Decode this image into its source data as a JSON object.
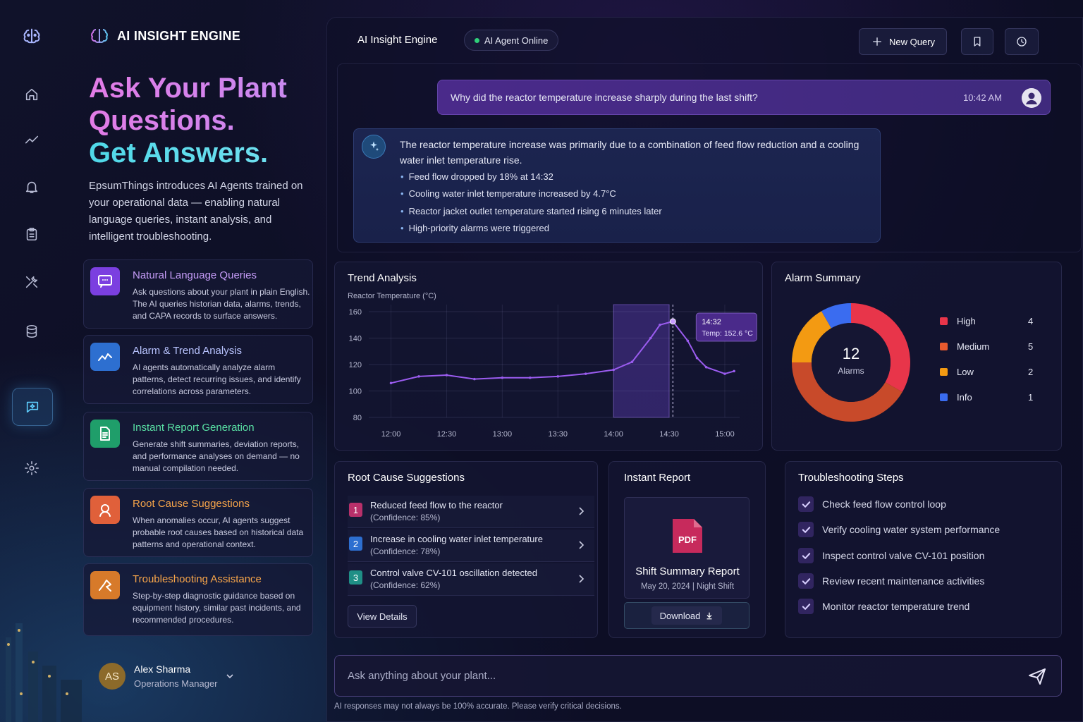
{
  "brand": {
    "title": "AI INSIGHT ENGINE"
  },
  "hero": {
    "line1": "Ask Your Plant",
    "line2": "Questions.",
    "line3": "Get Answers.",
    "intro": "EpsumThings introduces AI Agents trained on your operational data — enabling natural language queries, instant analysis, and intelligent troubleshooting."
  },
  "features": [
    {
      "title": "Natural Language Queries",
      "desc": "Ask questions about your plant in plain English. The AI queries historian data, alarms, trends, and CAPA records to surface answers.",
      "color": "#7b3fe0",
      "title_color": "#c59cf7",
      "icon": "chat-icon"
    },
    {
      "title": "Alarm & Trend Analysis",
      "desc": "AI agents automatically analyze alarm patterns, detect recurring issues, and identify correlations across parameters.",
      "color": "#2d6fd0",
      "title_color": "#b9c4ff",
      "icon": "trend-icon"
    },
    {
      "title": "Instant Report Generation",
      "desc": "Generate shift summaries, deviation reports, and performance analyses on demand — no manual compilation needed.",
      "color": "#1f9e6a",
      "title_color": "#59e0a4",
      "icon": "document-icon"
    },
    {
      "title": "Root Cause Suggestions",
      "desc": "When anomalies occur, AI agents suggest probable root causes based on historical data patterns and operational context.",
      "color": "#e0603a",
      "title_color": "#f7a54a",
      "icon": "search-icon"
    },
    {
      "title": "Troubleshooting Assistance",
      "desc": "Step-by-step diagnostic guidance based on equipment history, similar past incidents, and recommended procedures.",
      "color": "#d77a2a",
      "title_color": "#f7a54a",
      "icon": "wrench-icon"
    }
  ],
  "user": {
    "initials": "AS",
    "name": "Alex Sharma",
    "role": "Operations Manager"
  },
  "topbar": {
    "title": "AI Insight Engine",
    "status": "AI Agent Online",
    "new_query": "New Query"
  },
  "chat": {
    "user_message": "Why did the reactor temperature increase sharply during the last shift?",
    "time": "10:42 AM",
    "ai_intro": "The reactor temperature increase was primarily due to a combination of feed flow reduction and a cooling water inlet temperature rise.",
    "ai_points": [
      "Feed flow dropped by 18% at 14:32",
      "Cooling water inlet temperature increased by 4.7°C",
      "Reactor jacket outlet temperature started rising 6 minutes later",
      "High-priority alarms were triggered"
    ]
  },
  "trend": {
    "title": "Trend Analysis",
    "tooltip_time": "14:32",
    "tooltip_value": "Temp: 152.6 °C"
  },
  "chart_data": [
    {
      "type": "line",
      "title": "Trend Analysis",
      "ylabel": "Reactor Temperature (°C)",
      "ylim": [
        80,
        160
      ],
      "yticks": [
        160,
        140,
        120,
        100,
        80
      ],
      "x": [
        "12:00",
        "12:15",
        "12:30",
        "12:45",
        "13:00",
        "13:15",
        "13:30",
        "13:45",
        "14:00",
        "14:10",
        "14:20",
        "14:25",
        "14:32",
        "14:40",
        "14:45",
        "14:50",
        "15:00",
        "15:05"
      ],
      "xticks": [
        "12:00",
        "12:30",
        "13:00",
        "13:30",
        "14:00",
        "14:30",
        "15:00"
      ],
      "series": [
        {
          "values": [
            106,
            111,
            112,
            109,
            110,
            110,
            111,
            113,
            116,
            122,
            140,
            150,
            152.6,
            138,
            125,
            118,
            113,
            115
          ]
        }
      ],
      "highlight": [
        "14:00",
        "14:30"
      ],
      "color": "#9b5cf0"
    },
    {
      "type": "pie",
      "title": "Alarm Summary",
      "center_value": "12",
      "center_label": "Alarms",
      "categories": [
        "High",
        "Medium",
        "Low",
        "Info"
      ],
      "values": [
        4,
        5,
        2,
        1
      ],
      "colors": [
        "#e8354a",
        "#e85a2e",
        "#f39a12",
        "#3a6cf0"
      ]
    }
  ],
  "alarms": {
    "title": "Alarm Summary",
    "total": "12",
    "label": "Alarms",
    "items": [
      {
        "name": "High",
        "count": "4",
        "color": "#e8354a"
      },
      {
        "name": "Medium",
        "count": "5",
        "color": "#e85a2e"
      },
      {
        "name": "Low",
        "count": "2",
        "color": "#f39a12"
      },
      {
        "name": "Info",
        "count": "1",
        "color": "#3a6cf0"
      }
    ]
  },
  "root_cause": {
    "title": "Root Cause Suggestions",
    "items": [
      {
        "num": "1",
        "text": "Reduced feed flow to the reactor",
        "conf": "(Confidence: 85%)",
        "color": "#b8306a"
      },
      {
        "num": "2",
        "text": "Increase in cooling water inlet temperature",
        "conf": "(Confidence: 78%)",
        "color": "#2d6fd0"
      },
      {
        "num": "3",
        "text": "Control valve CV-101 oscillation detected",
        "conf": "(Confidence: 62%)",
        "color": "#1f8f86"
      }
    ],
    "button": "View Details"
  },
  "report": {
    "title": "Instant Report",
    "file_badge": "PDF",
    "name": "Shift Summary Report",
    "meta": "May 20, 2024 | Night Shift",
    "button": "Download"
  },
  "troubleshooting": {
    "title": "Troubleshooting Steps",
    "steps": [
      "Check feed flow control loop",
      "Verify cooling water system performance",
      "Inspect control valve CV-101 position",
      "Review recent maintenance activities",
      "Monitor reactor temperature trend"
    ]
  },
  "input": {
    "placeholder": "Ask anything about your plant...",
    "disclaimer": "AI responses may not always be 100% accurate. Please verify critical decisions."
  }
}
